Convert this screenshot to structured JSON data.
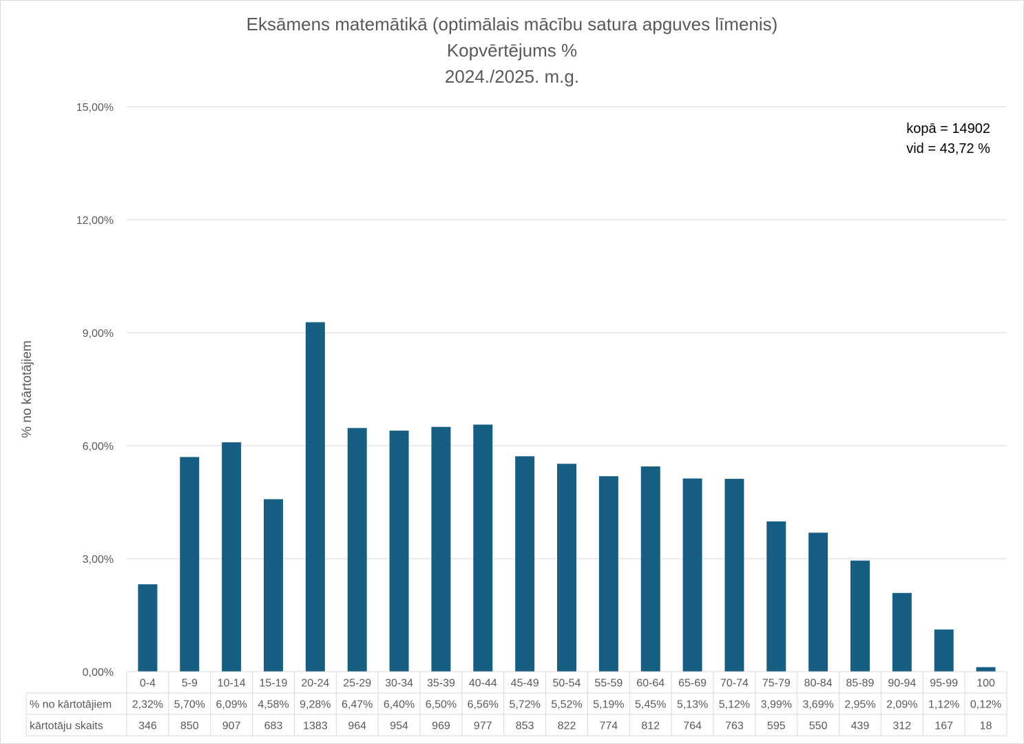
{
  "chart_data": {
    "type": "bar",
    "title": "Eksāmens matemātikā (optimālais mācību satura apguves līmenis)",
    "subtitle": "Kopvērtējums %",
    "subtitle2": "2024./2025. m.g.",
    "ylabel": "% no kārtotājiem",
    "ylim": [
      0,
      15
    ],
    "yticks": [
      "0,00%",
      "3,00%",
      "6,00%",
      "9,00%",
      "12,00%",
      "15,00%"
    ],
    "ytick_values": [
      0,
      3,
      6,
      9,
      12,
      15
    ],
    "grid": true,
    "bar_color": "#175f82",
    "categories": [
      "0-4",
      "5-9",
      "10-14",
      "15-19",
      "20-24",
      "25-29",
      "30-34",
      "35-39",
      "40-44",
      "45-49",
      "50-54",
      "55-59",
      "60-64",
      "65-69",
      "70-74",
      "75-79",
      "80-84",
      "85-89",
      "90-94",
      "95-99",
      "100"
    ],
    "values": [
      2.32,
      5.7,
      6.09,
      4.58,
      9.28,
      6.47,
      6.4,
      6.5,
      6.56,
      5.72,
      5.52,
      5.19,
      5.45,
      5.13,
      5.12,
      3.99,
      3.69,
      2.95,
      2.09,
      1.12,
      0.12
    ],
    "table": {
      "row1_label": "% no kārtotājiem",
      "row1": [
        "2,32%",
        "5,70%",
        "6,09%",
        "4,58%",
        "9,28%",
        "6,47%",
        "6,40%",
        "6,50%",
        "6,56%",
        "5,72%",
        "5,52%",
        "5,19%",
        "5,45%",
        "5,13%",
        "5,12%",
        "3,99%",
        "3,69%",
        "2,95%",
        "2,09%",
        "1,12%",
        "0,12%"
      ],
      "row2_label": "kārtotāju skaits",
      "row2": [
        "346",
        "850",
        "907",
        "683",
        "1383",
        "964",
        "954",
        "969",
        "977",
        "853",
        "822",
        "774",
        "812",
        "764",
        "763",
        "595",
        "550",
        "439",
        "312",
        "167",
        "18"
      ]
    },
    "annotations": [
      "kopā = 14902",
      "vid = 43,72 %"
    ]
  }
}
